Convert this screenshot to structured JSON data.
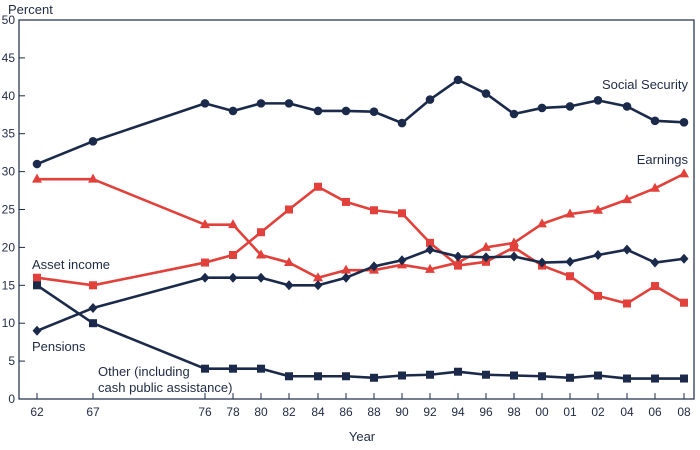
{
  "chart_data": {
    "type": "line",
    "title": "",
    "ylabel": "Percent",
    "xlabel": "Year",
    "ylim": [
      0,
      50
    ],
    "yticks": [
      0,
      5,
      10,
      15,
      20,
      25,
      30,
      35,
      40,
      45,
      50
    ],
    "grid": false,
    "legend": "none",
    "categories": [
      "62",
      "67",
      "76",
      "78",
      "80",
      "82",
      "84",
      "86",
      "88",
      "90",
      "92",
      "94",
      "96",
      "98",
      "00",
      "01",
      "02",
      "04",
      "06",
      "08"
    ],
    "series": [
      {
        "name": "Social Security",
        "label": "Social Security",
        "color": "#1b2a4a",
        "marker": "circle",
        "values": [
          31,
          34,
          39,
          38,
          39,
          39,
          38,
          38,
          37.9,
          36.4,
          39.5,
          42.1,
          40.3,
          37.6,
          38.4,
          38.6,
          39.4,
          38.6,
          36.7,
          36.5
        ]
      },
      {
        "name": "Earnings",
        "label": "Earnings",
        "color": "#e2403a",
        "marker": "triangle",
        "values": [
          29,
          29,
          23,
          23,
          19,
          18,
          16,
          17,
          17,
          17.7,
          17.1,
          18,
          20,
          20.6,
          23.1,
          24.4,
          24.9,
          26.3,
          27.8,
          29.7
        ]
      },
      {
        "name": "Asset income",
        "label": "Asset income",
        "color": "#e2403a",
        "marker": "square",
        "values": [
          16,
          15,
          18,
          19,
          22,
          25,
          28,
          26,
          24.9,
          24.5,
          20.6,
          17.6,
          18.1,
          20,
          17.6,
          16.2,
          13.6,
          12.6,
          14.9,
          12.7
        ]
      },
      {
        "name": "Pensions",
        "label": "Pensions",
        "color": "#1b2a4a",
        "marker": "diamond",
        "values": [
          9,
          12,
          16,
          16,
          16,
          15,
          15,
          16,
          17.5,
          18.3,
          19.7,
          18.8,
          18.7,
          18.8,
          18,
          18.1,
          19,
          19.7,
          18,
          18.5
        ]
      },
      {
        "name": "Other (including cash public assistance)",
        "label_lines": [
          "Other (including",
          "cash public assistance)"
        ],
        "color": "#1b2a4a",
        "marker": "square",
        "values": [
          15,
          10,
          4,
          4,
          4,
          3,
          3,
          3,
          2.8,
          3.1,
          3.2,
          3.6,
          3.2,
          3.1,
          3.0,
          2.8,
          3.1,
          2.7,
          2.7,
          2.7
        ]
      }
    ]
  }
}
